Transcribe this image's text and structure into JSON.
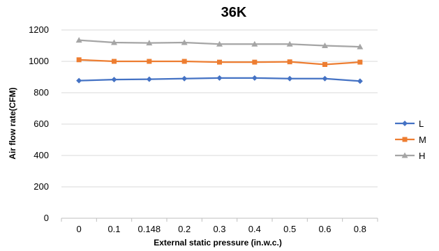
{
  "chart_data": {
    "type": "line",
    "title": "36K",
    "xlabel": "External static pressure (in.w.c.)",
    "ylabel": "Air flow rate(CFM)",
    "categories": [
      "0",
      "0.1",
      "0.148",
      "0.2",
      "0.3",
      "0.4",
      "0.5",
      "0.6",
      "0.8"
    ],
    "ylim": [
      0,
      1200
    ],
    "yticks": [
      0,
      200,
      400,
      600,
      800,
      1000,
      1200
    ],
    "grid": true,
    "legend_position": "right",
    "series": [
      {
        "name": "L",
        "color": "#4472C4",
        "marker": "diamond",
        "values": [
          877,
          884,
          886,
          890,
          894,
          894,
          890,
          890,
          874
        ]
      },
      {
        "name": "M",
        "color": "#ED7D31",
        "marker": "square",
        "values": [
          1010,
          1000,
          1000,
          1000,
          995,
          995,
          997,
          980,
          995
        ]
      },
      {
        "name": "H",
        "color": "#A5A5A5",
        "marker": "triangle",
        "values": [
          1135,
          1120,
          1117,
          1120,
          1110,
          1110,
          1110,
          1100,
          1093
        ]
      }
    ]
  }
}
